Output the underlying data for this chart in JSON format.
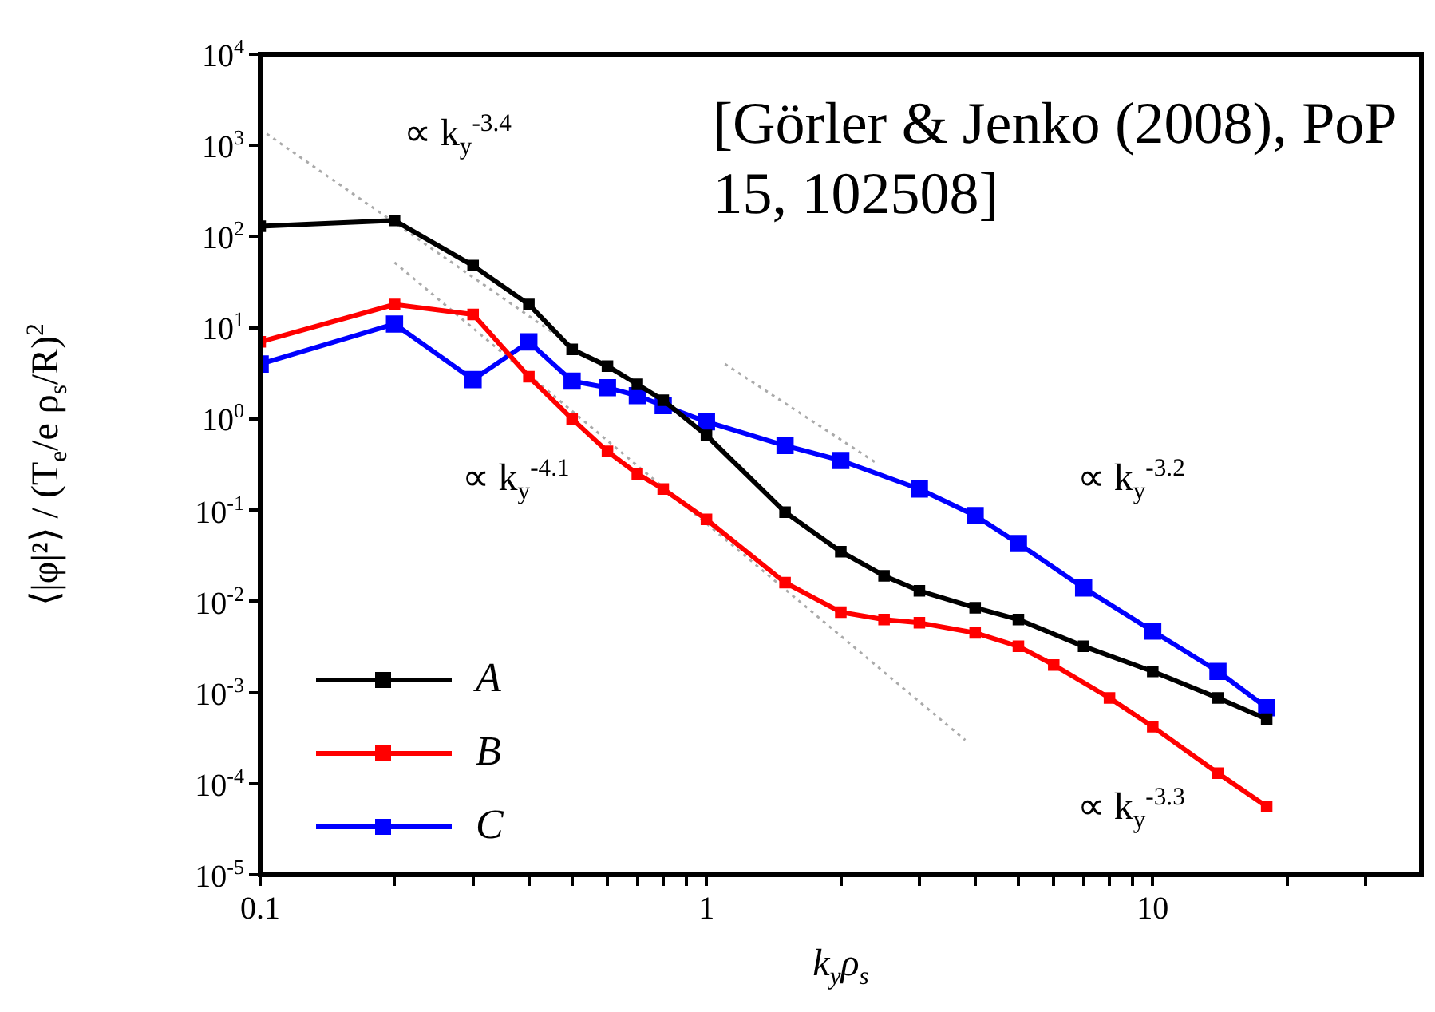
{
  "chart_data": {
    "type": "line",
    "xlabel": "k$_{y}$ρ$_{s}$",
    "ylabel": "⟨|φ|²⟩ / (T$_{e}$/e ρ$_{s}$/R)$^{2}$",
    "log": "xy",
    "xlim": [
      0.1,
      40
    ],
    "ylim": [
      1e-05,
      10000
    ],
    "xticks": [
      0.1,
      {
        "value": 0.2,
        "label": null
      },
      {
        "value": 0.3,
        "label": null
      },
      {
        "value": 0.4,
        "label": null
      },
      {
        "value": 0.5,
        "label": null
      },
      {
        "value": 0.6,
        "label": null
      },
      {
        "value": 0.7,
        "label": null
      },
      {
        "value": 0.8,
        "label": null
      },
      {
        "value": 0.9,
        "label": null
      },
      1,
      {
        "value": 2,
        "label": null
      },
      {
        "value": 3,
        "label": null
      },
      {
        "value": 4,
        "label": null
      },
      {
        "value": 5,
        "label": null
      },
      {
        "value": 6,
        "label": null
      },
      {
        "value": 7,
        "label": null
      },
      {
        "value": 8,
        "label": null
      },
      {
        "value": 9,
        "label": null
      },
      10,
      {
        "value": 20,
        "label": null
      },
      {
        "value": 30,
        "label": null
      }
    ],
    "yticks": [
      {
        "value": 1e-05,
        "label": "10$^{-5}$"
      },
      {
        "value": 0.0001,
        "label": "10$^{-4}$"
      },
      {
        "value": 0.001,
        "label": "10$^{-3}$"
      },
      {
        "value": 0.01,
        "label": "10$^{-2}$"
      },
      {
        "value": 0.1,
        "label": "10$^{-1}$"
      },
      {
        "value": 1,
        "label": "10$^{0}$"
      },
      {
        "value": 10,
        "label": "10$^{1}$"
      },
      {
        "value": 100,
        "label": "10$^{2}$"
      },
      {
        "value": 1000,
        "label": "10$^{3}$"
      },
      {
        "value": 10000,
        "label": "10$^{4}$"
      }
    ],
    "grid": false,
    "legend": "bottom left",
    "marker": "square",
    "x": [
      0.1,
      0.2,
      0.3,
      0.4,
      0.5,
      0.6,
      0.7,
      0.8,
      1,
      1.5,
      2,
      2.5,
      3,
      4,
      5,
      7,
      10,
      14,
      18
    ],
    "series": [
      {
        "name": "A",
        "color": "#000000",
        "values": [
          130,
          150,
          48,
          18,
          5.8,
          3.8,
          2.4,
          1.6,
          0.66,
          0.095,
          0.035,
          0.019,
          0.013,
          0.0085,
          0.0063,
          0.0032,
          0.0017,
          0.00087,
          0.00051
        ]
      },
      {
        "name": "B",
        "color": "#ff0000",
        "x": [
          0.1,
          0.2,
          0.3,
          0.4,
          0.5,
          0.6,
          0.7,
          0.8,
          1,
          1.5,
          2,
          2.5,
          3,
          4,
          5,
          6,
          8,
          10,
          14,
          18
        ],
        "values": [
          7,
          18,
          14,
          2.9,
          1,
          0.44,
          0.25,
          0.17,
          0.079,
          0.016,
          0.0076,
          0.0063,
          0.0058,
          0.0045,
          0.0032,
          0.002,
          0.00087,
          0.00042,
          0.00013,
          5.6e-05
        ]
      },
      {
        "name": "C",
        "color": "#0000ff",
        "x": [
          0.1,
          0.2,
          0.3,
          0.4,
          0.5,
          0.6,
          0.7,
          0.8,
          1,
          1.5,
          2,
          3,
          4,
          5,
          7,
          10,
          14,
          18
        ],
        "values": [
          4,
          11,
          2.7,
          7,
          2.6,
          2.2,
          1.8,
          1.4,
          0.93,
          0.51,
          0.35,
          0.17,
          0.087,
          0.043,
          0.014,
          0.0047,
          0.0017,
          0.00068
        ]
      },
      {
        "type": "line",
        "color": "#aaaaaa",
        "marker": "none",
        "line_style": "dotted",
        "x": [
          0.1,
          0.5
        ],
        "values": [
          1500,
          6.3
        ]
      },
      {
        "type": "line",
        "color": "#aaaaaa",
        "marker": "none",
        "line_style": "dotted",
        "x": [
          0.2,
          3.8
        ],
        "values": [
          52,
          0.0003
        ]
      },
      {
        "type": "line",
        "color": "#aaaaaa",
        "marker": "none",
        "line_style": "dotted",
        "x": [
          1.1,
          2.4
        ],
        "values": [
          4,
          0.33
        ]
      }
    ],
    "annotations": [
      "∝ k$_{y}$$^{-3.4}$",
      "∝ k$_{y}$$^{-4.1}$",
      "∝ k$_{y}$$^{-3.2}$",
      "∝ k$_{y}$$^{-3.3}$",
      "[Görler & Jenko (2008), PoP 15, 102508]"
    ]
  }
}
